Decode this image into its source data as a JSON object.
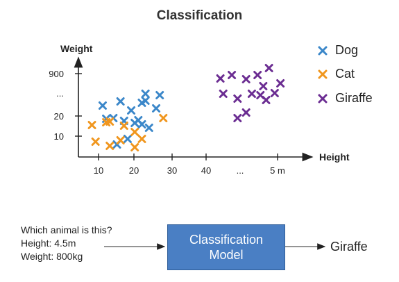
{
  "title": "Classification",
  "chart_data": {
    "type": "scatter",
    "xlabel": "Height",
    "ylabel": "Weight",
    "x_tick_labels": [
      "10",
      "20",
      "30",
      "40",
      "...",
      "5 m"
    ],
    "y_tick_labels": [
      "10",
      "20",
      "...",
      "900"
    ],
    "series": [
      {
        "name": "Dog",
        "color": "#3b87c9",
        "points": [
          [
            11,
            152
          ],
          [
            12,
            171
          ],
          [
            16,
            146
          ],
          [
            19,
            159
          ],
          [
            22,
            148
          ],
          [
            23,
            145
          ],
          [
            23,
            135
          ],
          [
            26,
            156
          ],
          [
            27,
            137
          ],
          [
            14,
            170
          ],
          [
            17,
            174
          ],
          [
            20,
            177
          ],
          [
            24,
            184
          ],
          [
            22,
            179
          ],
          [
            18,
            200
          ],
          [
            15,
            208
          ],
          [
            21,
            173
          ]
        ]
      },
      {
        "name": "Cat",
        "color": "#f0961e",
        "points": [
          [
            8,
            180
          ],
          [
            12,
            176
          ],
          [
            13,
            175
          ],
          [
            17,
            181
          ],
          [
            20,
            190
          ],
          [
            22,
            200
          ],
          [
            20,
            212
          ],
          [
            9,
            204
          ],
          [
            13,
            210
          ],
          [
            16,
            202
          ],
          [
            28,
            170
          ]
        ]
      },
      {
        "name": "Giraffe",
        "color": "#6b2d92",
        "points": [
          [
            45,
            113
          ],
          [
            49,
            108
          ],
          [
            54,
            114
          ],
          [
            58,
            108
          ],
          [
            62,
            98
          ],
          [
            46,
            135
          ],
          [
            51,
            142
          ],
          [
            56,
            135
          ],
          [
            59,
            137
          ],
          [
            61,
            144
          ],
          [
            64,
            134
          ],
          [
            60,
            124
          ],
          [
            66,
            120
          ],
          [
            51,
            170
          ],
          [
            54,
            162
          ]
        ]
      }
    ]
  },
  "diagram": {
    "question_lines": [
      "Which animal is this?",
      "Height: 4.5m",
      "Weight: 800kg"
    ],
    "model_label": "Classification Model",
    "result": "Giraffe"
  }
}
